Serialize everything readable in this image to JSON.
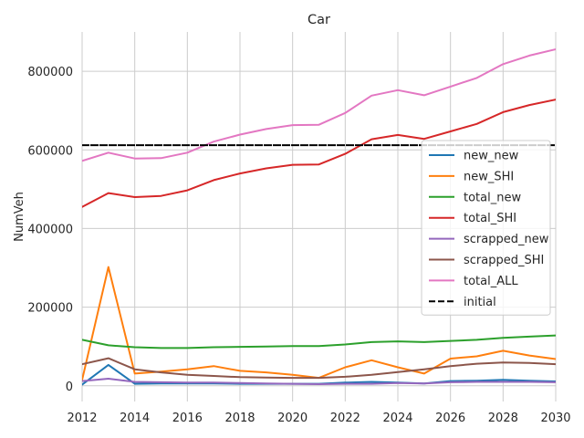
{
  "chart_data": {
    "type": "line",
    "title": "Car",
    "xlabel": "",
    "ylabel": "NumVeh",
    "xlim": [
      2012,
      2030
    ],
    "ylim": [
      -40000,
      900000
    ],
    "xticks": [
      2012,
      2014,
      2016,
      2018,
      2020,
      2022,
      2024,
      2026,
      2028,
      2030
    ],
    "yticks": [
      0,
      200000,
      400000,
      600000,
      800000
    ],
    "ytick_labels": [
      "0",
      "200000",
      "400000",
      "600000",
      "800000"
    ],
    "grid": true,
    "legend_position": "center-right",
    "x": [
      2012,
      2013,
      2014,
      2015,
      2016,
      2017,
      2018,
      2019,
      2020,
      2021,
      2022,
      2023,
      2024,
      2025,
      2026,
      2027,
      2028,
      2029,
      2030
    ],
    "series": [
      {
        "name": "new_new",
        "color": "#1f77b4",
        "style": "solid",
        "values": [
          3000,
          53000,
          5000,
          6000,
          6000,
          6000,
          5000,
          5000,
          5000,
          5000,
          8000,
          10000,
          8000,
          6000,
          12000,
          13000,
          15000,
          13000,
          11000
        ]
      },
      {
        "name": "new_SHI",
        "color": "#ff7f0e",
        "style": "solid",
        "values": [
          15000,
          302000,
          31000,
          36000,
          42000,
          50000,
          38000,
          34000,
          28000,
          20000,
          47000,
          65000,
          47000,
          31000,
          69000,
          75000,
          89000,
          77000,
          68000
        ]
      },
      {
        "name": "total_new",
        "color": "#2ca02c",
        "style": "solid",
        "values": [
          117000,
          103000,
          98000,
          96000,
          96000,
          98000,
          99000,
          100000,
          101000,
          101000,
          105000,
          111000,
          113000,
          111000,
          114000,
          117000,
          122000,
          125000,
          128000
        ]
      },
      {
        "name": "total_SHI",
        "color": "#d62728",
        "style": "solid",
        "values": [
          455000,
          490000,
          480000,
          483000,
          497000,
          523000,
          540000,
          553000,
          562000,
          563000,
          590000,
          627000,
          638000,
          628000,
          647000,
          666000,
          696000,
          714000,
          728000
        ]
      },
      {
        "name": "scrapped_new",
        "color": "#9467bd",
        "style": "solid",
        "values": [
          12000,
          18000,
          10000,
          9000,
          8000,
          8000,
          7000,
          6000,
          5000,
          4000,
          5000,
          5000,
          7000,
          6000,
          9000,
          10000,
          10000,
          10000,
          9000
        ]
      },
      {
        "name": "scrapped_SHI",
        "color": "#8c564b",
        "style": "solid",
        "values": [
          55000,
          70000,
          42000,
          34000,
          28000,
          25000,
          22000,
          21000,
          20000,
          20000,
          23000,
          28000,
          35000,
          42000,
          50000,
          56000,
          59000,
          58000,
          55000
        ]
      },
      {
        "name": "total_ALL",
        "color": "#e377c2",
        "style": "solid",
        "values": [
          572000,
          593000,
          578000,
          579000,
          593000,
          621000,
          639000,
          653000,
          663000,
          664000,
          694000,
          738000,
          752000,
          739000,
          761000,
          783000,
          818000,
          840000,
          856000
        ]
      },
      {
        "name": "initial",
        "color": "#000000",
        "style": "dashed",
        "values": [
          612000,
          612000,
          612000,
          612000,
          612000,
          612000,
          612000,
          612000,
          612000,
          612000,
          612000,
          612000,
          612000,
          612000,
          612000,
          612000,
          612000,
          612000,
          612000
        ]
      }
    ]
  }
}
